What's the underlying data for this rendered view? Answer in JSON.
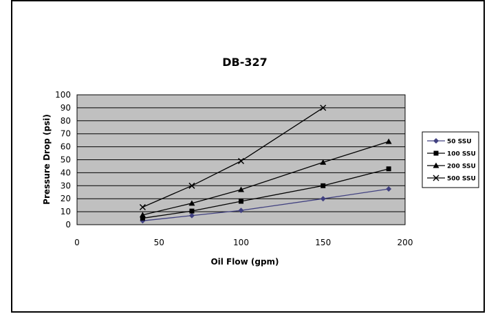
{
  "chart_data": {
    "type": "line",
    "title": "DB-327",
    "xlabel": "Oil Flow (gpm)",
    "ylabel": "Pressure Drop (psi)",
    "xlim": [
      0,
      200
    ],
    "ylim": [
      0,
      100
    ],
    "x_ticks": [
      0,
      50,
      100,
      150,
      200
    ],
    "y_ticks": [
      0,
      10,
      20,
      30,
      40,
      50,
      60,
      70,
      80,
      90,
      100
    ],
    "grid": true,
    "legend_position": "right",
    "plot_background": "#c0c0c0",
    "series": [
      {
        "name": "50 SSU",
        "marker": "diamond",
        "color": "#404080",
        "points": [
          [
            40,
            3
          ],
          [
            70,
            7
          ],
          [
            100,
            11
          ],
          [
            150,
            20
          ],
          [
            190,
            27.5
          ]
        ]
      },
      {
        "name": "100 SSU",
        "marker": "square",
        "color": "#000000",
        "points": [
          [
            40,
            5
          ],
          [
            70,
            10.5
          ],
          [
            100,
            18
          ],
          [
            150,
            30
          ],
          [
            190,
            43
          ]
        ]
      },
      {
        "name": "200 SSU",
        "marker": "triangle",
        "color": "#000000",
        "points": [
          [
            40,
            7.5
          ],
          [
            70,
            16.5
          ],
          [
            100,
            27
          ],
          [
            150,
            48
          ],
          [
            190,
            64
          ]
        ]
      },
      {
        "name": "500 SSU",
        "marker": "x",
        "color": "#000000",
        "points": [
          [
            40,
            13.5
          ],
          [
            70,
            30
          ],
          [
            100,
            49
          ],
          [
            150,
            90
          ]
        ]
      }
    ]
  }
}
